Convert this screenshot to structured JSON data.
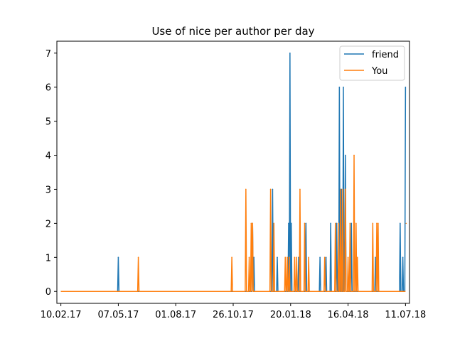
{
  "chart_data": {
    "type": "line",
    "title": "Use of nice per author per day",
    "xlabel": "",
    "ylabel": "",
    "x_start": "10.02.17",
    "x_end": "11.07.18",
    "xlim": [
      "2017-02-04",
      "2018-07-17"
    ],
    "ylim": [
      -0.35,
      7.35
    ],
    "x_ticks": [
      {
        "date": "2017-02-10",
        "label": "10.02.17"
      },
      {
        "date": "2017-05-07",
        "label": "07.05.17"
      },
      {
        "date": "2017-08-01",
        "label": "01.08.17"
      },
      {
        "date": "2017-10-26",
        "label": "26.10.17"
      },
      {
        "date": "2018-01-20",
        "label": "20.01.18"
      },
      {
        "date": "2018-04-16",
        "label": "16.04.18"
      },
      {
        "date": "2018-07-11",
        "label": "11.07.18"
      }
    ],
    "y_ticks": [
      0,
      1,
      2,
      3,
      4,
      5,
      6,
      7
    ],
    "grid": false,
    "legend_position": "top-right",
    "series": [
      {
        "name": "friend",
        "color": "#1f77b4",
        "points": [
          {
            "date": "2017-05-07",
            "value": 1
          },
          {
            "date": "2017-11-24",
            "value": 2
          },
          {
            "date": "2017-11-26",
            "value": 1
          },
          {
            "date": "2017-12-24",
            "value": 3
          },
          {
            "date": "2017-12-31",
            "value": 1
          },
          {
            "date": "2018-01-17",
            "value": 2
          },
          {
            "date": "2018-01-19",
            "value": 7
          },
          {
            "date": "2018-01-21",
            "value": 2
          },
          {
            "date": "2018-02-01",
            "value": 1
          },
          {
            "date": "2018-02-12",
            "value": 2
          },
          {
            "date": "2018-03-05",
            "value": 1
          },
          {
            "date": "2018-03-14",
            "value": 1
          },
          {
            "date": "2018-03-21",
            "value": 2
          },
          {
            "date": "2018-03-30",
            "value": 2
          },
          {
            "date": "2018-04-03",
            "value": 6
          },
          {
            "date": "2018-04-06",
            "value": 3
          },
          {
            "date": "2018-04-09",
            "value": 6
          },
          {
            "date": "2018-04-12",
            "value": 4
          },
          {
            "date": "2018-04-21",
            "value": 2
          },
          {
            "date": "2018-05-27",
            "value": 1
          },
          {
            "date": "2018-07-03",
            "value": 2
          },
          {
            "date": "2018-07-07",
            "value": 1
          },
          {
            "date": "2018-07-11",
            "value": 6
          }
        ]
      },
      {
        "name": "You",
        "color": "#ff7f0e",
        "points": [
          {
            "date": "2017-06-06",
            "value": 1
          },
          {
            "date": "2017-10-24",
            "value": 1
          },
          {
            "date": "2017-11-14",
            "value": 3
          },
          {
            "date": "2017-11-19",
            "value": 1
          },
          {
            "date": "2017-11-22",
            "value": 2
          },
          {
            "date": "2017-11-24",
            "value": 2
          },
          {
            "date": "2017-12-21",
            "value": 3
          },
          {
            "date": "2017-12-26",
            "value": 2
          },
          {
            "date": "2018-01-12",
            "value": 1
          },
          {
            "date": "2018-01-15",
            "value": 1
          },
          {
            "date": "2018-01-18",
            "value": 1
          },
          {
            "date": "2018-01-26",
            "value": 1
          },
          {
            "date": "2018-01-29",
            "value": 1
          },
          {
            "date": "2018-02-03",
            "value": 3
          },
          {
            "date": "2018-02-10",
            "value": 2
          },
          {
            "date": "2018-02-16",
            "value": 1
          },
          {
            "date": "2018-03-12",
            "value": 1
          },
          {
            "date": "2018-03-28",
            "value": 2
          },
          {
            "date": "2018-04-02",
            "value": 2
          },
          {
            "date": "2018-04-05",
            "value": 3
          },
          {
            "date": "2018-04-08",
            "value": 3
          },
          {
            "date": "2018-04-12",
            "value": 3
          },
          {
            "date": "2018-04-16",
            "value": 1
          },
          {
            "date": "2018-04-19",
            "value": 2
          },
          {
            "date": "2018-04-25",
            "value": 4
          },
          {
            "date": "2018-04-28",
            "value": 2
          },
          {
            "date": "2018-04-30",
            "value": 1
          },
          {
            "date": "2018-05-23",
            "value": 2
          },
          {
            "date": "2018-05-29",
            "value": 2
          },
          {
            "date": "2018-05-31",
            "value": 2
          },
          {
            "date": "2018-07-12",
            "value": 2
          }
        ]
      }
    ]
  }
}
